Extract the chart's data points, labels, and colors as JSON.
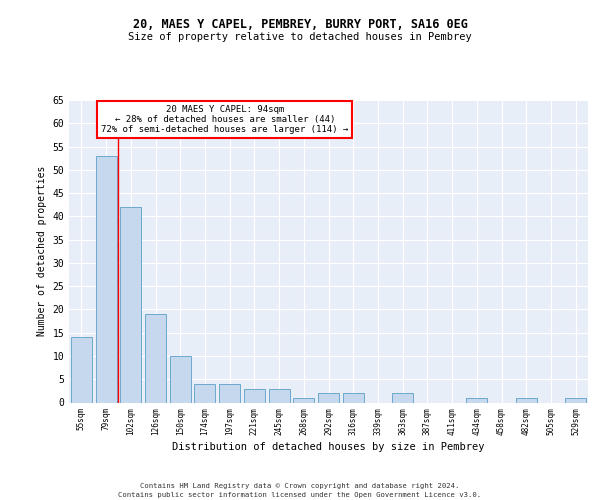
{
  "title1": "20, MAES Y CAPEL, PEMBREY, BURRY PORT, SA16 0EG",
  "title2": "Size of property relative to detached houses in Pembrey",
  "xlabel": "Distribution of detached houses by size in Pembrey",
  "ylabel": "Number of detached properties",
  "categories": [
    "55sqm",
    "79sqm",
    "102sqm",
    "126sqm",
    "150sqm",
    "174sqm",
    "197sqm",
    "221sqm",
    "245sqm",
    "268sqm",
    "292sqm",
    "316sqm",
    "339sqm",
    "363sqm",
    "387sqm",
    "411sqm",
    "434sqm",
    "458sqm",
    "482sqm",
    "505sqm",
    "529sqm"
  ],
  "values": [
    14,
    53,
    42,
    19,
    10,
    4,
    4,
    3,
    3,
    1,
    2,
    2,
    0,
    2,
    0,
    0,
    1,
    0,
    1,
    0,
    1
  ],
  "bar_color": "#c5d8ed",
  "bar_edge_color": "#5a9fc8",
  "annotation_text": "20 MAES Y CAPEL: 94sqm\n← 28% of detached houses are smaller (44)\n72% of semi-detached houses are larger (114) →",
  "annotation_box_color": "white",
  "annotation_box_edge_color": "red",
  "red_line_x": 1.5,
  "ylim": [
    0,
    65
  ],
  "yticks": [
    0,
    5,
    10,
    15,
    20,
    25,
    30,
    35,
    40,
    45,
    50,
    55,
    60,
    65
  ],
  "background_color": "#e8eef8",
  "grid_color": "white",
  "footer1": "Contains HM Land Registry data © Crown copyright and database right 2024.",
  "footer2": "Contains public sector information licensed under the Open Government Licence v3.0."
}
